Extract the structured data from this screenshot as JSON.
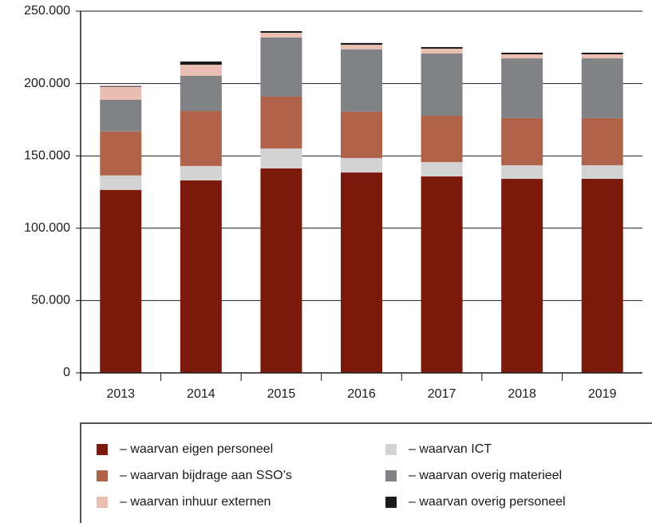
{
  "chart_data": {
    "type": "bar",
    "stacked": true,
    "categories": [
      "2013",
      "2014",
      "2015",
      "2016",
      "2017",
      "2018",
      "2019"
    ],
    "series": [
      {
        "name": "– waarvan eigen personeel",
        "color": "#7b1a0c",
        "values": [
          126500,
          133000,
          141300,
          138500,
          135800,
          134100,
          134100
        ]
      },
      {
        "name": "– waarvan ICT",
        "color": "#d3d3d3",
        "values": [
          10000,
          10000,
          13800,
          10000,
          9900,
          9400,
          9400
        ]
      },
      {
        "name": "– waarvan bijdrage aan SSO’s",
        "color": "#b0634a",
        "values": [
          30300,
          38000,
          35900,
          32000,
          32000,
          32600,
          32600
        ]
      },
      {
        "name": "– waarvan overig materieel",
        "color": "#808285",
        "values": [
          22000,
          24300,
          40800,
          43000,
          43100,
          41300,
          41300
        ]
      },
      {
        "name": "– waarvan inhuur externen",
        "color": "#e8bfb0",
        "values": [
          9000,
          7700,
          3300,
          3300,
          3300,
          2800,
          2800
        ]
      },
      {
        "name": "– waarvan overig personeel",
        "color": "#1a1a1a",
        "values": [
          500,
          2200,
          1100,
          1200,
          1100,
          1100,
          1100
        ]
      }
    ],
    "ylim": [
      0,
      250000
    ],
    "yticks": [
      0,
      {
        "value": 50000,
        "label": "50.000"
      },
      {
        "value": 100000,
        "label": "100.000"
      },
      {
        "value": 150000,
        "label": "150.000"
      },
      {
        "value": 200000,
        "label": "200.000"
      },
      {
        "value": 250000,
        "label": "250.000"
      }
    ],
    "grid": true,
    "legend": "bottom"
  }
}
